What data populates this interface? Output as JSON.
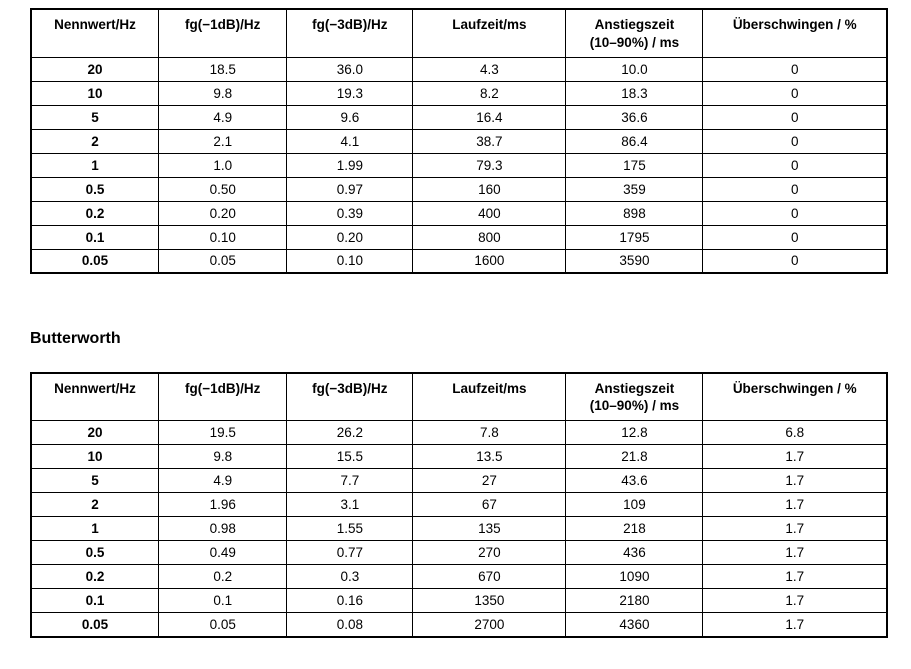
{
  "heading": {
    "label": "Butterworth"
  },
  "tables": [
    {
      "columns": [
        "Nennwert/Hz",
        "fg(−1dB)/Hz",
        "fg(−3dB)/Hz",
        "Laufzeit/ms",
        "Anstiegszeit\n(10–90%) / ms",
        "Überschwingen / %"
      ],
      "rows": [
        [
          "20",
          "18.5",
          "36.0",
          "4.3",
          "10.0",
          "0"
        ],
        [
          "10",
          "9.8",
          "19.3",
          "8.2",
          "18.3",
          "0"
        ],
        [
          "5",
          "4.9",
          "9.6",
          "16.4",
          "36.6",
          "0"
        ],
        [
          "2",
          "2.1",
          "4.1",
          "38.7",
          "86.4",
          "0"
        ],
        [
          "1",
          "1.0",
          "1.99",
          "79.3",
          "175",
          "0"
        ],
        [
          "0.5",
          "0.50",
          "0.97",
          "160",
          "359",
          "0"
        ],
        [
          "0.2",
          "0.20",
          "0.39",
          "400",
          "898",
          "0"
        ],
        [
          "0.1",
          "0.10",
          "0.20",
          "800",
          "1795",
          "0"
        ],
        [
          "0.05",
          "0.05",
          "0.10",
          "1600",
          "3590",
          "0"
        ]
      ]
    },
    {
      "columns": [
        "Nennwert/Hz",
        "fg(−1dB)/Hz",
        "fg(−3dB)/Hz",
        "Laufzeit/ms",
        "Anstiegszeit\n(10–90%) / ms",
        "Überschwingen / %"
      ],
      "rows": [
        [
          "20",
          "19.5",
          "26.2",
          "7.8",
          "12.8",
          "6.8"
        ],
        [
          "10",
          "9.8",
          "15.5",
          "13.5",
          "21.8",
          "1.7"
        ],
        [
          "5",
          "4.9",
          "7.7",
          "27",
          "43.6",
          "1.7"
        ],
        [
          "2",
          "1.96",
          "3.1",
          "67",
          "109",
          "1.7"
        ],
        [
          "1",
          "0.98",
          "1.55",
          "135",
          "218",
          "1.7"
        ],
        [
          "0.5",
          "0.49",
          "0.77",
          "270",
          "436",
          "1.7"
        ],
        [
          "0.2",
          "0.2",
          "0.3",
          "670",
          "1090",
          "1.7"
        ],
        [
          "0.1",
          "0.1",
          "0.16",
          "1350",
          "2180",
          "1.7"
        ],
        [
          "0.05",
          "0.05",
          "0.08",
          "2700",
          "4360",
          "1.7"
        ]
      ]
    }
  ]
}
